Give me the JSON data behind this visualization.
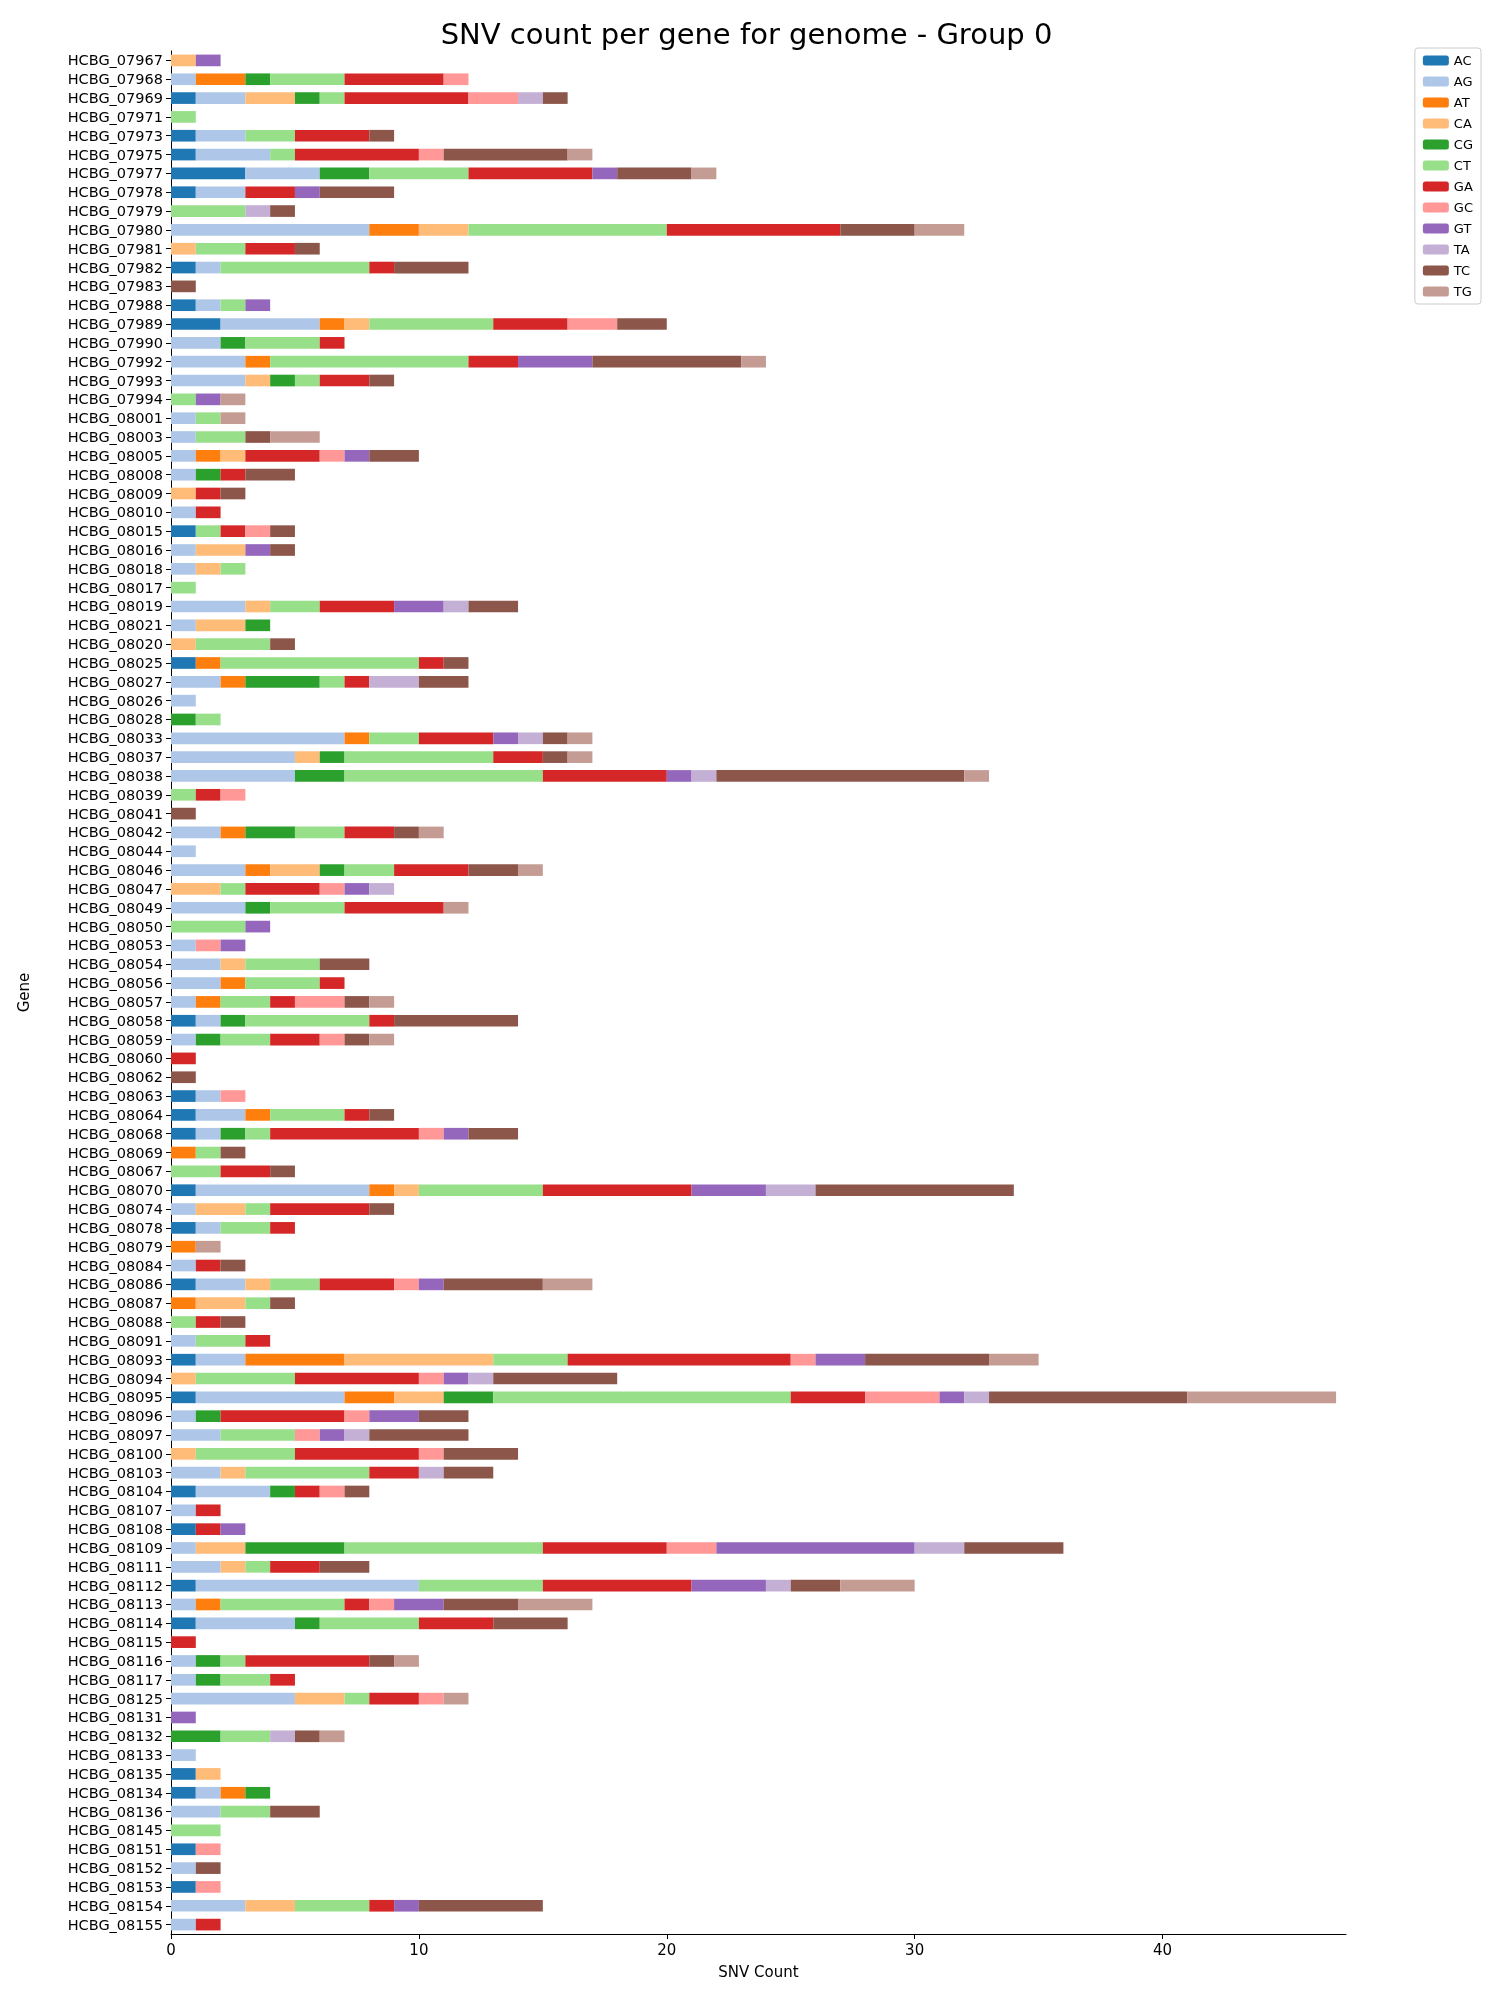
{
  "chart_data": {
    "type": "bar",
    "orientation": "horizontal",
    "stacked": true,
    "title": "SNV count per gene for genome - Group 0",
    "xlabel": "SNV Count",
    "ylabel": "Gene",
    "legend": "top right",
    "grid": false,
    "xlim": [
      0,
      47.4
    ],
    "xticks": [
      0,
      10,
      20,
      30,
      40
    ],
    "categories": [
      "HCBG_07967",
      "HCBG_07968",
      "HCBG_07969",
      "HCBG_07971",
      "HCBG_07973",
      "HCBG_07975",
      "HCBG_07977",
      "HCBG_07978",
      "HCBG_07979",
      "HCBG_07980",
      "HCBG_07981",
      "HCBG_07982",
      "HCBG_07983",
      "HCBG_07988",
      "HCBG_07989",
      "HCBG_07990",
      "HCBG_07992",
      "HCBG_07993",
      "HCBG_07994",
      "HCBG_08001",
      "HCBG_08003",
      "HCBG_08005",
      "HCBG_08008",
      "HCBG_08009",
      "HCBG_08010",
      "HCBG_08015",
      "HCBG_08016",
      "HCBG_08018",
      "HCBG_08017",
      "HCBG_08019",
      "HCBG_08021",
      "HCBG_08020",
      "HCBG_08025",
      "HCBG_08027",
      "HCBG_08026",
      "HCBG_08028",
      "HCBG_08033",
      "HCBG_08037",
      "HCBG_08038",
      "HCBG_08039",
      "HCBG_08041",
      "HCBG_08042",
      "HCBG_08044",
      "HCBG_08046",
      "HCBG_08047",
      "HCBG_08049",
      "HCBG_08050",
      "HCBG_08053",
      "HCBG_08054",
      "HCBG_08056",
      "HCBG_08057",
      "HCBG_08058",
      "HCBG_08059",
      "HCBG_08060",
      "HCBG_08062",
      "HCBG_08063",
      "HCBG_08064",
      "HCBG_08068",
      "HCBG_08069",
      "HCBG_08067",
      "HCBG_08070",
      "HCBG_08074",
      "HCBG_08078",
      "HCBG_08079",
      "HCBG_08084",
      "HCBG_08086",
      "HCBG_08087",
      "HCBG_08088",
      "HCBG_08091",
      "HCBG_08093",
      "HCBG_08094",
      "HCBG_08095",
      "HCBG_08096",
      "HCBG_08097",
      "HCBG_08100",
      "HCBG_08103",
      "HCBG_08104",
      "HCBG_08107",
      "HCBG_08108",
      "HCBG_08109",
      "HCBG_08111",
      "HCBG_08112",
      "HCBG_08113",
      "HCBG_08114",
      "HCBG_08115",
      "HCBG_08116",
      "HCBG_08117",
      "HCBG_08125",
      "HCBG_08131",
      "HCBG_08132",
      "HCBG_08133",
      "HCBG_08135",
      "HCBG_08134",
      "HCBG_08136",
      "HCBG_08145",
      "HCBG_08151",
      "HCBG_08152",
      "HCBG_08153",
      "HCBG_08154",
      "HCBG_08155"
    ],
    "series": [
      {
        "name": "AC",
        "color": "#1f77b4",
        "values": [
          0,
          0,
          1,
          0,
          1,
          1,
          3,
          1,
          0,
          0,
          0,
          1,
          0,
          1,
          2,
          0,
          0,
          0,
          0,
          0,
          0,
          0,
          0,
          0,
          0,
          1,
          0,
          0,
          0,
          0,
          0,
          0,
          1,
          0,
          0,
          0,
          0,
          0,
          0,
          0,
          0,
          0,
          0,
          0,
          0,
          0,
          0,
          0,
          0,
          0,
          0,
          1,
          0,
          0,
          0,
          1,
          1,
          1,
          0,
          0,
          1,
          0,
          1,
          0,
          0,
          1,
          0,
          0,
          0,
          1,
          0,
          1,
          0,
          0,
          0,
          0,
          1,
          0,
          1,
          0,
          0,
          1,
          0,
          1,
          0,
          0,
          0,
          0,
          0,
          0,
          0,
          1,
          1,
          0,
          0,
          1,
          0,
          1,
          0,
          0
        ]
      },
      {
        "name": "AG",
        "color": "#aec7e8",
        "values": [
          0,
          1,
          2,
          0,
          2,
          3,
          3,
          2,
          0,
          8,
          0,
          1,
          0,
          1,
          4,
          2,
          3,
          3,
          0,
          1,
          1,
          1,
          1,
          0,
          1,
          0,
          1,
          1,
          0,
          3,
          1,
          0,
          0,
          2,
          1,
          0,
          7,
          5,
          5,
          0,
          0,
          2,
          1,
          3,
          0,
          3,
          0,
          1,
          2,
          2,
          1,
          1,
          1,
          0,
          0,
          1,
          2,
          1,
          0,
          0,
          7,
          1,
          1,
          0,
          1,
          2,
          0,
          0,
          1,
          2,
          0,
          6,
          1,
          2,
          0,
          2,
          3,
          1,
          0,
          1,
          2,
          9,
          1,
          4,
          0,
          1,
          1,
          5,
          0,
          0,
          1,
          0,
          1,
          2,
          0,
          0,
          1,
          0,
          3,
          1
        ]
      },
      {
        "name": "AT",
        "color": "#ff7f0e",
        "values": [
          0,
          2,
          0,
          0,
          0,
          0,
          0,
          0,
          0,
          2,
          0,
          0,
          0,
          0,
          1,
          0,
          1,
          0,
          0,
          0,
          0,
          1,
          0,
          0,
          0,
          0,
          0,
          0,
          0,
          0,
          0,
          0,
          1,
          1,
          0,
          0,
          1,
          0,
          0,
          0,
          0,
          1,
          0,
          1,
          0,
          0,
          0,
          0,
          0,
          1,
          1,
          0,
          0,
          0,
          0,
          0,
          1,
          0,
          1,
          0,
          1,
          0,
          0,
          1,
          0,
          0,
          1,
          0,
          0,
          4,
          0,
          2,
          0,
          0,
          0,
          0,
          0,
          0,
          0,
          0,
          0,
          0,
          1,
          0,
          0,
          0,
          0,
          0,
          0,
          0,
          0,
          0,
          1,
          0,
          0,
          0,
          0,
          0,
          0,
          0
        ]
      },
      {
        "name": "CA",
        "color": "#ffbb78",
        "values": [
          1,
          0,
          2,
          0,
          0,
          0,
          0,
          0,
          0,
          2,
          1,
          0,
          0,
          0,
          1,
          0,
          0,
          1,
          0,
          0,
          0,
          1,
          0,
          1,
          0,
          0,
          2,
          1,
          0,
          1,
          2,
          1,
          0,
          0,
          0,
          0,
          0,
          1,
          0,
          0,
          0,
          0,
          0,
          2,
          2,
          0,
          0,
          0,
          1,
          0,
          0,
          0,
          0,
          0,
          0,
          0,
          0,
          0,
          0,
          0,
          1,
          2,
          0,
          0,
          0,
          1,
          2,
          0,
          0,
          6,
          1,
          2,
          0,
          0,
          1,
          1,
          0,
          0,
          0,
          2,
          1,
          0,
          0,
          0,
          0,
          0,
          0,
          2,
          0,
          0,
          0,
          1,
          0,
          0,
          0,
          0,
          0,
          0,
          2,
          0
        ]
      },
      {
        "name": "CG",
        "color": "#2ca02c",
        "values": [
          0,
          1,
          1,
          0,
          0,
          0,
          2,
          0,
          0,
          0,
          0,
          0,
          0,
          0,
          0,
          1,
          0,
          1,
          0,
          0,
          0,
          0,
          1,
          0,
          0,
          0,
          0,
          0,
          0,
          0,
          1,
          0,
          0,
          3,
          0,
          1,
          0,
          1,
          2,
          0,
          0,
          2,
          0,
          1,
          0,
          1,
          0,
          0,
          0,
          0,
          0,
          1,
          1,
          0,
          0,
          0,
          0,
          1,
          0,
          0,
          0,
          0,
          0,
          0,
          0,
          0,
          0,
          0,
          0,
          0,
          0,
          2,
          1,
          0,
          0,
          0,
          1,
          0,
          0,
          4,
          0,
          0,
          0,
          1,
          0,
          1,
          1,
          0,
          0,
          2,
          0,
          0,
          1,
          0,
          0,
          0,
          0,
          0,
          0,
          0
        ]
      },
      {
        "name": "CT",
        "color": "#98df8a",
        "values": [
          0,
          3,
          1,
          1,
          2,
          1,
          4,
          0,
          3,
          8,
          2,
          6,
          0,
          1,
          5,
          3,
          8,
          1,
          1,
          1,
          2,
          0,
          0,
          0,
          0,
          1,
          0,
          1,
          1,
          2,
          0,
          3,
          8,
          1,
          0,
          1,
          2,
          6,
          8,
          1,
          0,
          2,
          0,
          2,
          1,
          3,
          3,
          0,
          3,
          3,
          2,
          5,
          2,
          0,
          0,
          0,
          3,
          1,
          1,
          2,
          5,
          1,
          2,
          0,
          0,
          2,
          1,
          1,
          2,
          3,
          4,
          12,
          0,
          3,
          4,
          5,
          0,
          0,
          0,
          8,
          1,
          5,
          5,
          4,
          0,
          1,
          2,
          1,
          0,
          2,
          0,
          0,
          0,
          2,
          2,
          0,
          0,
          0,
          3,
          0
        ]
      },
      {
        "name": "GA",
        "color": "#d62728",
        "values": [
          0,
          4,
          5,
          0,
          3,
          5,
          5,
          2,
          0,
          7,
          2,
          1,
          0,
          0,
          3,
          1,
          2,
          2,
          0,
          0,
          0,
          3,
          1,
          1,
          1,
          1,
          0,
          0,
          0,
          3,
          0,
          0,
          1,
          1,
          0,
          0,
          3,
          2,
          5,
          1,
          0,
          2,
          0,
          3,
          3,
          4,
          0,
          0,
          0,
          1,
          1,
          1,
          2,
          1,
          0,
          0,
          1,
          6,
          0,
          2,
          6,
          4,
          1,
          0,
          1,
          3,
          0,
          1,
          1,
          9,
          5,
          3,
          5,
          0,
          5,
          2,
          1,
          1,
          1,
          5,
          2,
          6,
          1,
          3,
          1,
          5,
          1,
          2,
          0,
          0,
          0,
          0,
          0,
          0,
          0,
          0,
          0,
          0,
          1,
          1
        ]
      },
      {
        "name": "GC",
        "color": "#ff9896",
        "values": [
          0,
          1,
          2,
          0,
          0,
          1,
          0,
          0,
          0,
          0,
          0,
          0,
          0,
          0,
          2,
          0,
          0,
          0,
          0,
          0,
          0,
          1,
          0,
          0,
          0,
          1,
          0,
          0,
          0,
          0,
          0,
          0,
          0,
          0,
          0,
          0,
          0,
          0,
          0,
          1,
          0,
          0,
          0,
          0,
          1,
          0,
          0,
          1,
          0,
          0,
          2,
          0,
          1,
          0,
          0,
          1,
          0,
          1,
          0,
          0,
          0,
          0,
          0,
          0,
          0,
          1,
          0,
          0,
          0,
          1,
          1,
          3,
          1,
          1,
          1,
          0,
          1,
          0,
          0,
          2,
          0,
          0,
          1,
          0,
          0,
          0,
          0,
          1,
          0,
          0,
          0,
          0,
          0,
          0,
          0,
          1,
          0,
          1,
          0,
          0
        ]
      },
      {
        "name": "GT",
        "color": "#9467bd",
        "values": [
          1,
          0,
          0,
          0,
          0,
          0,
          1,
          1,
          0,
          0,
          0,
          0,
          0,
          1,
          0,
          0,
          3,
          0,
          1,
          0,
          0,
          1,
          0,
          0,
          0,
          0,
          1,
          0,
          0,
          2,
          0,
          0,
          0,
          0,
          0,
          0,
          1,
          0,
          1,
          0,
          0,
          0,
          0,
          0,
          1,
          0,
          1,
          1,
          0,
          0,
          0,
          0,
          0,
          0,
          0,
          0,
          0,
          1,
          0,
          0,
          3,
          0,
          0,
          0,
          0,
          1,
          0,
          0,
          0,
          2,
          1,
          1,
          2,
          1,
          0,
          0,
          0,
          0,
          1,
          8,
          0,
          3,
          2,
          0,
          0,
          0,
          0,
          0,
          1,
          0,
          0,
          0,
          0,
          0,
          0,
          0,
          0,
          0,
          1,
          0
        ]
      },
      {
        "name": "TA",
        "color": "#c5b0d5",
        "values": [
          0,
          0,
          1,
          0,
          0,
          0,
          0,
          0,
          1,
          0,
          0,
          0,
          0,
          0,
          0,
          0,
          0,
          0,
          0,
          0,
          0,
          0,
          0,
          0,
          0,
          0,
          0,
          0,
          0,
          1,
          0,
          0,
          0,
          2,
          0,
          0,
          1,
          0,
          1,
          0,
          0,
          0,
          0,
          0,
          1,
          0,
          0,
          0,
          0,
          0,
          0,
          0,
          0,
          0,
          0,
          0,
          0,
          0,
          0,
          0,
          2,
          0,
          0,
          0,
          0,
          0,
          0,
          0,
          0,
          0,
          1,
          1,
          0,
          1,
          0,
          1,
          0,
          0,
          0,
          2,
          0,
          1,
          0,
          0,
          0,
          0,
          0,
          0,
          0,
          1,
          0,
          0,
          0,
          0,
          0,
          0,
          0,
          0,
          0,
          0
        ]
      },
      {
        "name": "TC",
        "color": "#8c564b",
        "values": [
          0,
          0,
          1,
          0,
          1,
          5,
          3,
          3,
          1,
          3,
          1,
          3,
          1,
          0,
          2,
          0,
          6,
          1,
          0,
          0,
          1,
          2,
          2,
          1,
          0,
          1,
          1,
          0,
          0,
          2,
          0,
          1,
          1,
          2,
          0,
          0,
          1,
          1,
          10,
          0,
          1,
          1,
          0,
          2,
          0,
          0,
          0,
          0,
          2,
          0,
          1,
          5,
          1,
          0,
          1,
          0,
          1,
          2,
          1,
          1,
          8,
          1,
          0,
          0,
          1,
          4,
          1,
          1,
          0,
          5,
          5,
          8,
          2,
          4,
          3,
          2,
          1,
          0,
          0,
          4,
          2,
          2,
          3,
          3,
          0,
          1,
          0,
          0,
          0,
          1,
          0,
          0,
          0,
          2,
          0,
          0,
          1,
          0,
          5,
          0
        ]
      },
      {
        "name": "TG",
        "color": "#c49c94",
        "values": [
          0,
          0,
          0,
          0,
          0,
          1,
          1,
          0,
          0,
          2,
          0,
          0,
          0,
          0,
          0,
          0,
          1,
          0,
          1,
          1,
          2,
          0,
          0,
          0,
          0,
          0,
          0,
          0,
          0,
          0,
          0,
          0,
          0,
          0,
          0,
          0,
          1,
          1,
          1,
          0,
          0,
          1,
          0,
          1,
          0,
          1,
          0,
          0,
          0,
          0,
          1,
          0,
          1,
          0,
          0,
          0,
          0,
          0,
          0,
          0,
          0,
          0,
          0,
          1,
          0,
          2,
          0,
          0,
          0,
          2,
          0,
          6,
          0,
          0,
          0,
          0,
          0,
          0,
          0,
          0,
          0,
          3,
          3,
          0,
          0,
          1,
          0,
          1,
          0,
          1,
          0,
          0,
          0,
          0,
          0,
          0,
          0,
          0,
          0,
          0
        ]
      }
    ]
  }
}
